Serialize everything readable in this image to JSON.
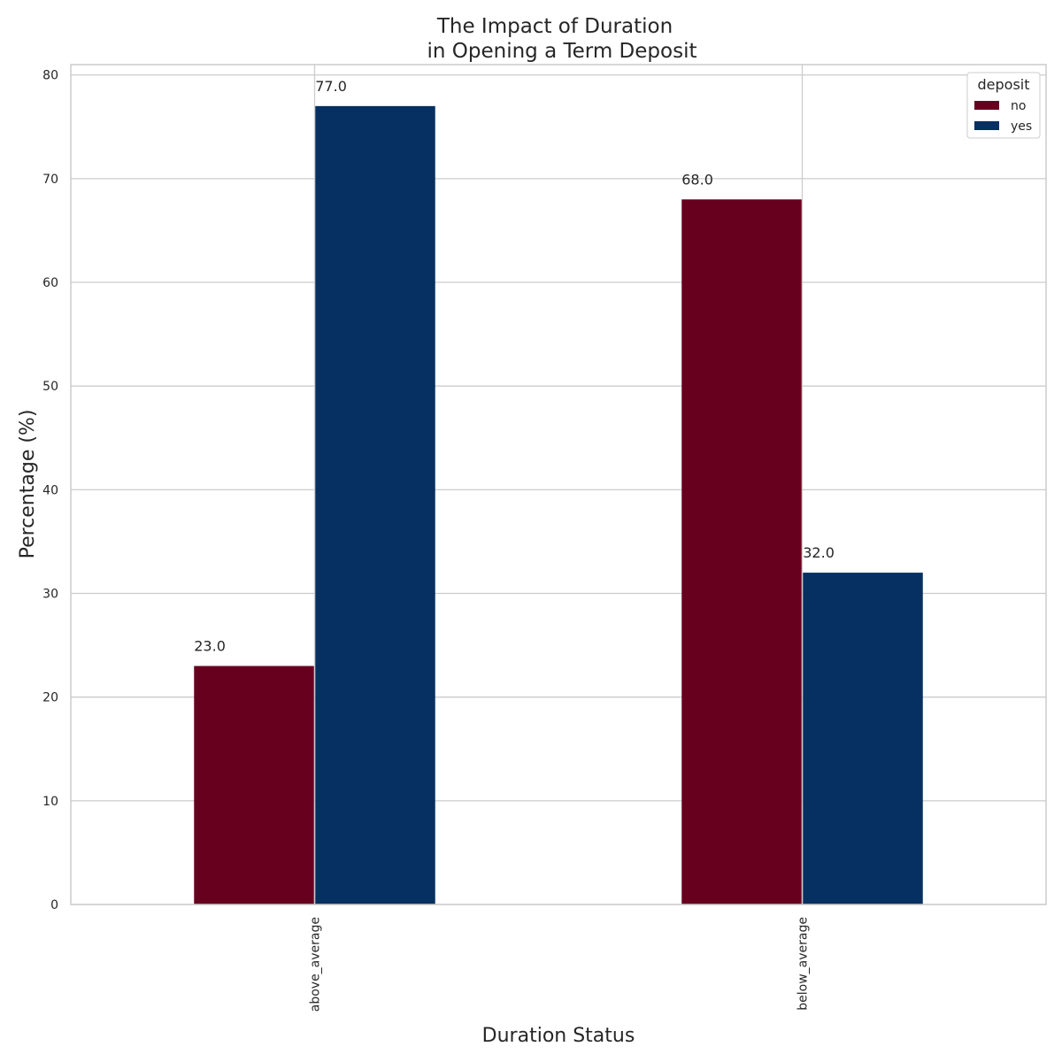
{
  "chart_data": {
    "type": "bar",
    "title_lines": [
      "The Impact of Duration",
      "in Opening a Term Deposit"
    ],
    "xlabel": "Duration Status",
    "ylabel": "Percentage (%)",
    "categories": [
      "above_average",
      "below_average"
    ],
    "series": [
      {
        "name": "no",
        "values": [
          23.0,
          68.0
        ],
        "color": "#67001f"
      },
      {
        "name": "yes",
        "values": [
          77.0,
          32.0
        ],
        "color": "#053061"
      }
    ],
    "data_labels": [
      [
        "23.0",
        "68.0"
      ],
      [
        "77.0",
        "32.0"
      ]
    ],
    "ylim": [
      0,
      81
    ],
    "yticks": [
      0,
      10,
      20,
      30,
      40,
      50,
      60,
      70,
      80
    ],
    "grid": true,
    "legend": {
      "title": "deposit",
      "placement": "top-right"
    }
  }
}
